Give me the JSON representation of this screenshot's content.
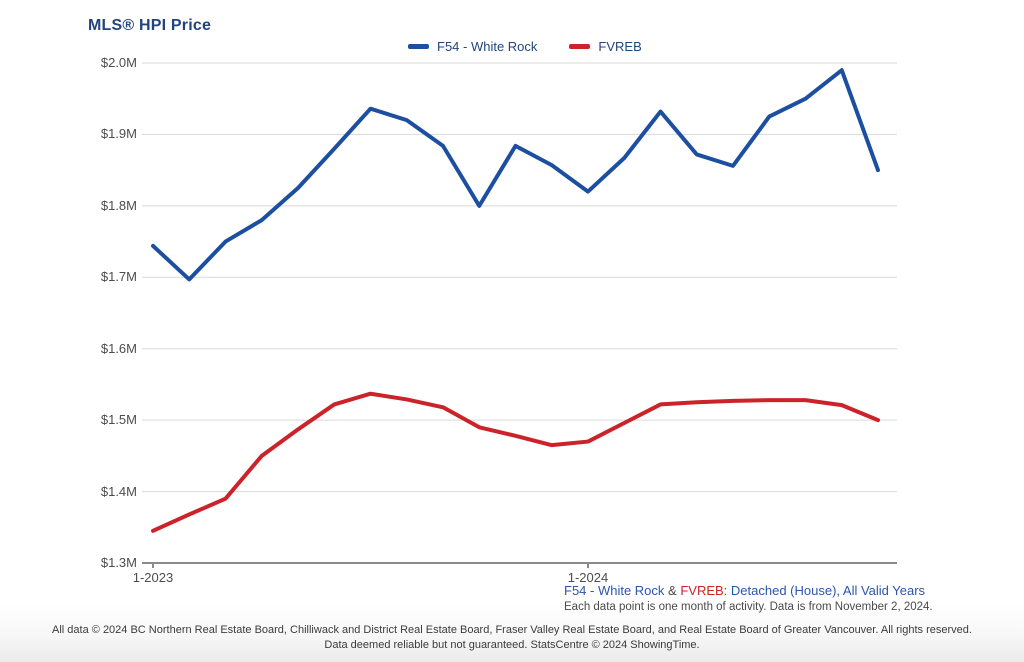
{
  "header": {
    "title": "MLS® HPI Price",
    "color": "#21457c"
  },
  "legend": {
    "text_color": "#21457c",
    "items": [
      {
        "label": "F54 - White Rock",
        "color": "#1d4fa1"
      },
      {
        "label": "FVREB",
        "color": "#cb2329"
      }
    ]
  },
  "axis": {
    "label_color": "#4d4d4d",
    "grid_color": "#d9d9d9",
    "axis_color": "#8a8a8a"
  },
  "chart_data": {
    "type": "line",
    "title": "MLS® HPI Price",
    "units": "CAD millions",
    "grid": "horizontal",
    "legend_position": "top",
    "categories": [
      "1-2023",
      "2-2023",
      "3-2023",
      "4-2023",
      "5-2023",
      "6-2023",
      "7-2023",
      "8-2023",
      "9-2023",
      "10-2023",
      "11-2023",
      "12-2023",
      "1-2024",
      "2-2024",
      "3-2024",
      "4-2024",
      "5-2024",
      "6-2024",
      "7-2024",
      "8-2024",
      "9-2024"
    ],
    "series": [
      {
        "name": "F54 - White Rock",
        "color": "#1d4fa1",
        "values": [
          1.744,
          1.697,
          1.75,
          1.78,
          1.825,
          1.88,
          1.936,
          1.92,
          1.884,
          1.8,
          1.884,
          1.857,
          1.82,
          1.867,
          1.932,
          1.872,
          1.856,
          1.925,
          1.95,
          1.99,
          1.85
        ]
      },
      {
        "name": "FVREB",
        "color": "#cb2329",
        "values": [
          1.345,
          1.368,
          1.39,
          1.45,
          1.487,
          1.522,
          1.537,
          1.529,
          1.518,
          1.49,
          1.478,
          1.465,
          1.47,
          1.496,
          1.522,
          1.525,
          1.527,
          1.528,
          1.528,
          1.521,
          1.5
        ]
      }
    ],
    "ylim": [
      1.3,
      2.0
    ],
    "y_tick_step": 0.1,
    "y_tick_labels": [
      "$2.0M",
      "$1.9M",
      "$1.8M",
      "$1.7M",
      "$1.6M",
      "$1.5M",
      "$1.4M",
      "$1.3M"
    ],
    "x_axis_ticks": [
      {
        "index": 0,
        "label": "1-2023"
      },
      {
        "index": 12,
        "label": "1-2024"
      }
    ]
  },
  "caption": {
    "parts": [
      {
        "text": "F54 - White Rock",
        "color": "#2a56ab"
      },
      {
        "text": " & ",
        "color": "#474747"
      },
      {
        "text": "FVREB",
        "color": "#cb2329"
      },
      {
        "text": ": Detached (House), All Valid Years",
        "color": "#2a56ab"
      }
    ],
    "note": "Each data point is one month of activity. Data is from November 2, 2024."
  },
  "footer": {
    "line1": "All data © 2024 BC Northern Real Estate Board, Chilliwack and District Real Estate Board, Fraser Valley Real Estate Board, and Real Estate Board of Greater Vancouver. All rights reserved.",
    "line2": "Data deemed reliable but not guaranteed. StatsCentre © 2024 ShowingTime."
  }
}
